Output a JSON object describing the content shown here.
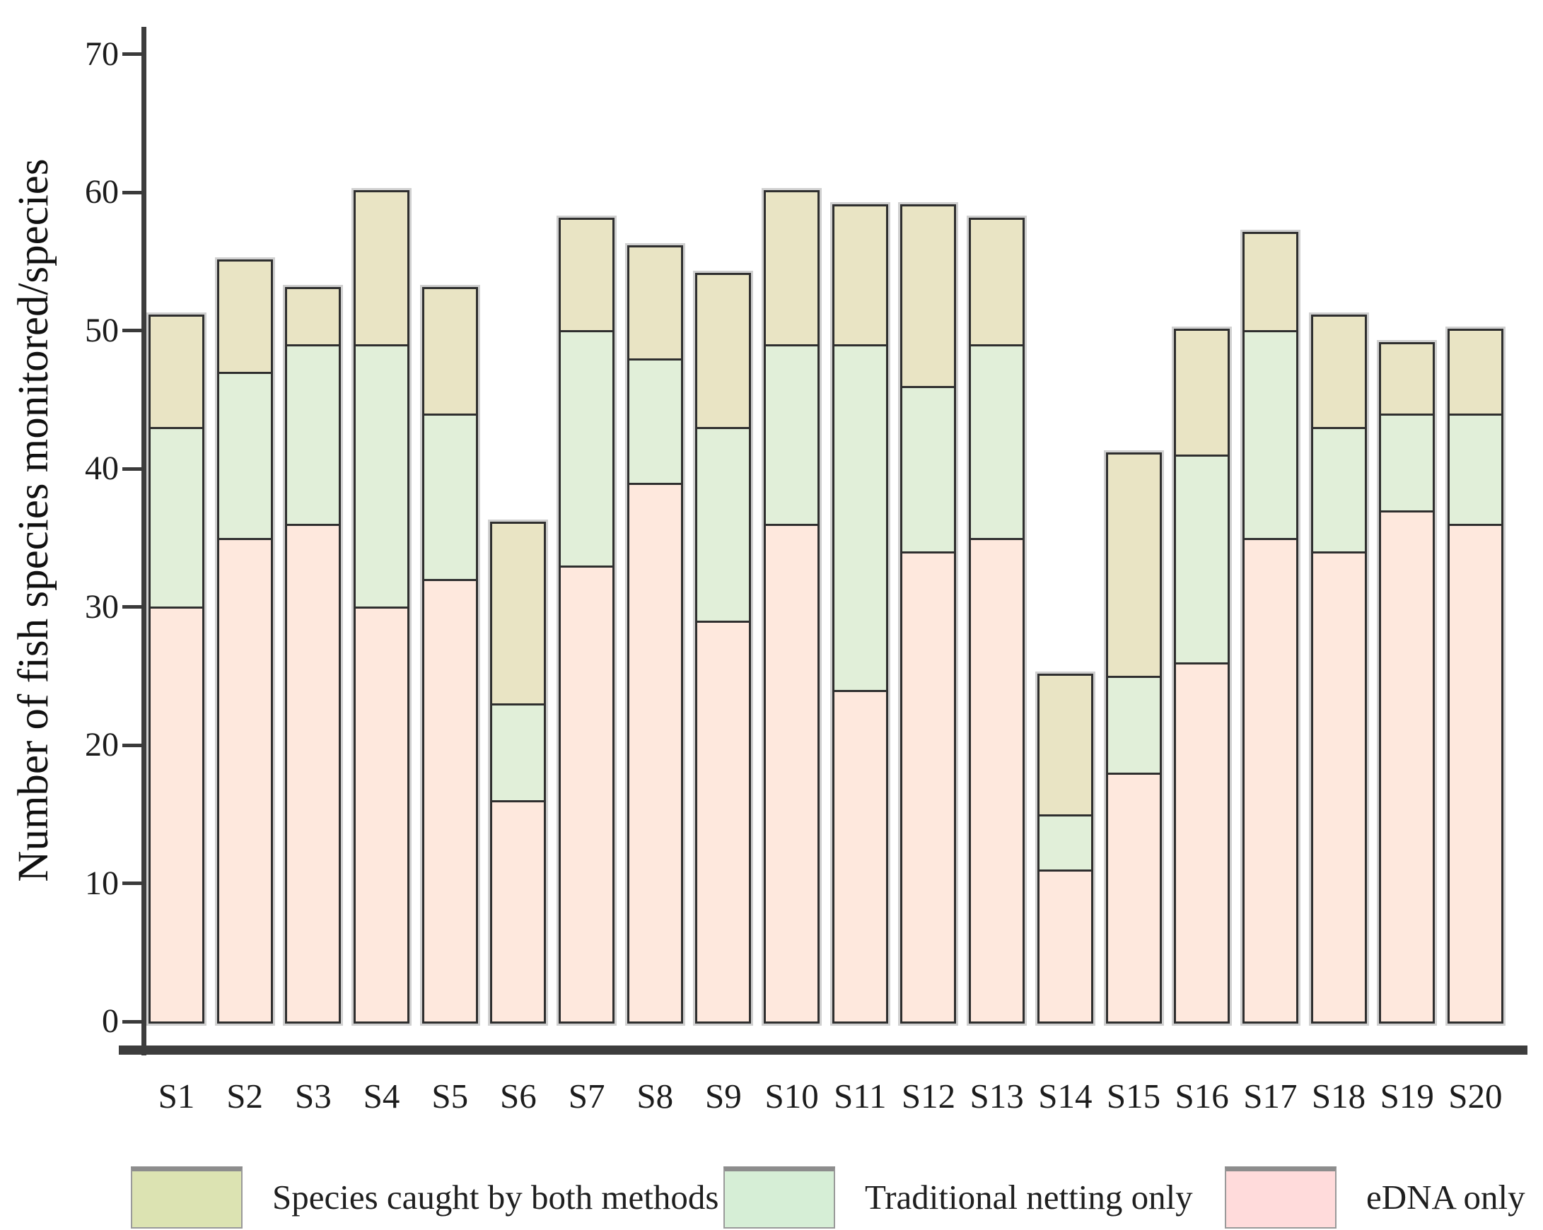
{
  "chart_data": {
    "type": "bar",
    "stacked": true,
    "title": "",
    "xlabel": "",
    "ylabel": "Number of fish species monitored/species",
    "categories": [
      "S1",
      "S2",
      "S3",
      "S4",
      "S5",
      "S6",
      "S7",
      "S8",
      "S9",
      "S10",
      "S11",
      "S12",
      "S13",
      "S14",
      "S15",
      "S16",
      "S17",
      "S18",
      "S19",
      "S20"
    ],
    "series": [
      {
        "name": "eDNA only",
        "bar_color": "#fee8dd",
        "legend_color": "#ffdbdb",
        "values": [
          30,
          35,
          36,
          30,
          32,
          16,
          33,
          39,
          29,
          36,
          24,
          34,
          35,
          11,
          18,
          26,
          35,
          34,
          37,
          36
        ]
      },
      {
        "name": "Traditional netting only",
        "bar_color": "#e1efd9",
        "legend_color": "#d6eed6",
        "values": [
          13,
          12,
          13,
          19,
          12,
          7,
          17,
          9,
          14,
          13,
          25,
          12,
          14,
          4,
          7,
          15,
          15,
          9,
          7,
          8
        ]
      },
      {
        "name": "Species caught by both methods",
        "bar_color": "#e9e4c4",
        "legend_color": "#dce3b2",
        "values": [
          8,
          8,
          4,
          11,
          9,
          13,
          8,
          8,
          11,
          11,
          10,
          13,
          9,
          10,
          16,
          9,
          7,
          8,
          5,
          6
        ]
      }
    ],
    "totals": [
      51,
      55,
      53,
      60,
      53,
      36,
      58,
      56,
      54,
      60,
      59,
      59,
      58,
      25,
      41,
      50,
      57,
      51,
      49,
      50
    ],
    "yticks": [
      0,
      10,
      20,
      30,
      40,
      50,
      60,
      70
    ],
    "ylim": [
      0,
      72
    ],
    "grid": false,
    "legend_position": "bottom",
    "legend_order": [
      "Species caught by both methods",
      "Traditional netting only",
      "eDNA only"
    ]
  }
}
